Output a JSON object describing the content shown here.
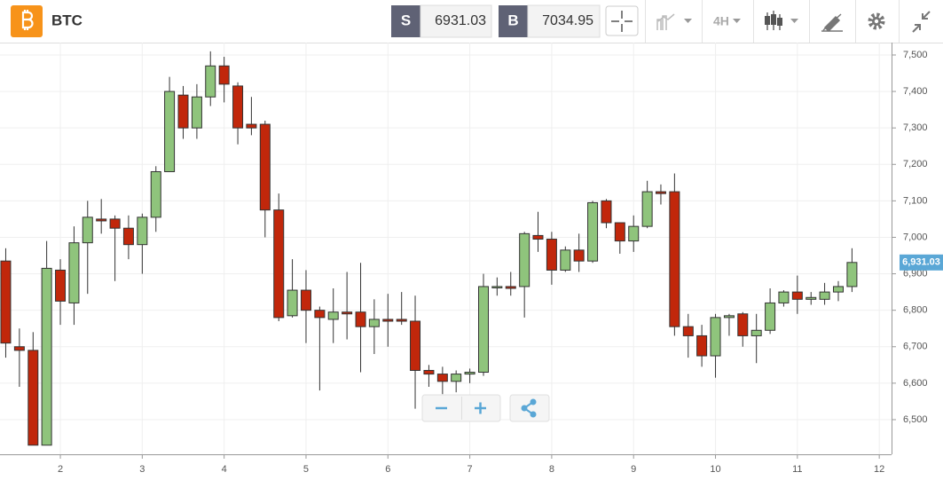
{
  "toolbar": {
    "symbol": "BTC",
    "sell_label": "S",
    "sell_price": 6931.03,
    "buy_label": "B",
    "buy_price": 7034.95,
    "timeframe": "4H"
  },
  "chart_data": {
    "type": "candlestick",
    "x": [
      1.333,
      1.5,
      1.667,
      1.833,
      2,
      2.167,
      2.333,
      2.5,
      2.667,
      2.833,
      3,
      3.167,
      3.333,
      3.5,
      3.667,
      3.833,
      4,
      4.167,
      4.333,
      4.5,
      4.667,
      4.833,
      5,
      5.167,
      5.333,
      5.5,
      5.667,
      5.833,
      6,
      6.167,
      6.333,
      6.5,
      6.667,
      6.833,
      7,
      7.167,
      7.333,
      7.5,
      7.667,
      7.833,
      8,
      8.167,
      8.333,
      8.5,
      8.667,
      8.833,
      9,
      9.167,
      9.333,
      9.5,
      9.667,
      9.833,
      10,
      10.167,
      10.333,
      10.5,
      10.667,
      10.833,
      11,
      11.167,
      11.333,
      11.5,
      11.667
    ],
    "open": [
      6935,
      6700,
      6690,
      6430,
      6910,
      6820,
      6985,
      7050,
      7050,
      7025,
      6980,
      7055,
      7180,
      7390,
      7300,
      7385,
      7470,
      7415,
      7310,
      7310,
      7075,
      6785,
      6855,
      6800,
      6775,
      6795,
      6795,
      6755,
      6775,
      6775,
      6770,
      6635,
      6625,
      6605,
      6625,
      6630,
      6865,
      6865,
      6865,
      7005,
      6995,
      6910,
      6965,
      6935,
      7100,
      7040,
      6990,
      7030,
      7125,
      7125,
      6755,
      6730,
      6675,
      6780,
      6790,
      6730,
      6745,
      6820,
      6850,
      6830,
      6830,
      6850,
      6865
    ],
    "high": [
      6970,
      6750,
      6740,
      6990,
      6940,
      7030,
      7100,
      7105,
      7060,
      7060,
      7065,
      7195,
      7440,
      7415,
      7420,
      7510,
      7495,
      7425,
      7385,
      7320,
      7120,
      6940,
      6910,
      6810,
      6860,
      6905,
      6930,
      6830,
      6845,
      6850,
      6840,
      6650,
      6645,
      6635,
      6640,
      6900,
      6890,
      6905,
      7015,
      7070,
      7015,
      6975,
      7010,
      7100,
      7105,
      7040,
      7060,
      7155,
      7145,
      7175,
      6790,
      6760,
      6790,
      6790,
      6795,
      6790,
      6860,
      6855,
      6895,
      6850,
      6875,
      6880,
      6970
    ],
    "low": [
      6670,
      6590,
      6430,
      6430,
      6760,
      6760,
      6845,
      7010,
      6880,
      6940,
      6900,
      7015,
      7180,
      7270,
      7270,
      7360,
      7370,
      7255,
      7280,
      7000,
      6770,
      6780,
      6710,
      6580,
      6710,
      6720,
      6630,
      6680,
      6700,
      6760,
      6530,
      6590,
      6570,
      6575,
      6600,
      6620,
      6840,
      6840,
      6780,
      6960,
      6870,
      6905,
      6905,
      6930,
      7025,
      6955,
      6960,
      7025,
      7090,
      6730,
      6670,
      6645,
      6615,
      6730,
      6700,
      6655,
      6735,
      6810,
      6790,
      6815,
      6815,
      6825,
      6850
    ],
    "close": [
      6710,
      6690,
      6430,
      6915,
      6825,
      6985,
      7055,
      7045,
      7025,
      6980,
      7055,
      7180,
      7400,
      7300,
      7385,
      7470,
      7420,
      7300,
      7300,
      7075,
      6780,
      6855,
      6800,
      6780,
      6795,
      6790,
      6755,
      6775,
      6770,
      6770,
      6635,
      6625,
      6605,
      6625,
      6630,
      6865,
      6865,
      6860,
      7010,
      6995,
      6910,
      6965,
      6935,
      7095,
      7040,
      6990,
      7030,
      7125,
      7120,
      6755,
      6730,
      6675,
      6780,
      6785,
      6730,
      6745,
      6820,
      6850,
      6830,
      6835,
      6850,
      6865,
      6931.03
    ],
    "up_color": "#8fc47c",
    "down_color": "#c1270b",
    "xlim": [
      1.263,
      12.15
    ],
    "xticks": [
      2,
      3,
      4,
      5,
      6,
      7,
      8,
      9,
      10,
      11,
      12
    ],
    "ylim": [
      6405,
      7534
    ],
    "yticks": [
      {
        "value": 6500,
        "label": "6,500"
      },
      {
        "value": 6600,
        "label": "6,600"
      },
      {
        "value": 6700,
        "label": "6,700"
      },
      {
        "value": 6800,
        "label": "6,800"
      },
      {
        "value": 6900,
        "label": "6,900"
      },
      {
        "value": 7000,
        "label": "7,000"
      },
      {
        "value": 7100,
        "label": "7,100"
      },
      {
        "value": 7200,
        "label": "7,200"
      },
      {
        "value": 7300,
        "label": "7,300"
      },
      {
        "value": 7400,
        "label": "7,400"
      },
      {
        "value": 7500,
        "label": "7,500"
      }
    ],
    "grid": true,
    "last_price": {
      "value": 6931.03,
      "label": "6,931.03"
    },
    "last_price_color": "#5aa7d6"
  }
}
